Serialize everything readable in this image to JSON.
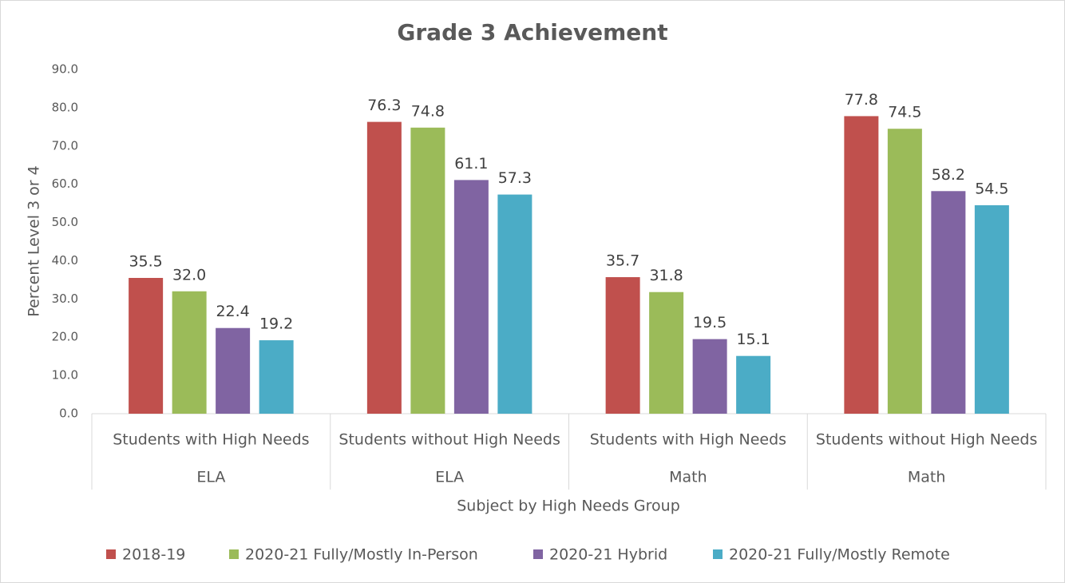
{
  "chart_data": {
    "type": "bar",
    "title": "Grade 3 Achievement",
    "y_label": "Percent Level 3 or 4",
    "x_label": "Subject by High Needs Group",
    "categories": [
      "Students with High Needs",
      "Students without High Needs",
      "Students with High Needs",
      "Students without High Needs"
    ],
    "category_groups": [
      "ELA",
      "ELA",
      "Math",
      "Math"
    ],
    "series": [
      {
        "name": "2018-19",
        "color": "#c0504d",
        "values": [
          35.5,
          76.3,
          35.7,
          77.8
        ],
        "value_labels": [
          "35.5",
          "76.3",
          "35.7",
          "77.8"
        ]
      },
      {
        "name": "2020-21 Fully/Mostly In-Person",
        "color": "#9bbb59",
        "values": [
          32,
          74.8,
          31.8,
          74.5
        ],
        "value_labels": [
          "32.0",
          "74.8",
          "31.8",
          "74.5"
        ]
      },
      {
        "name": "2020-21 Hybrid",
        "color": "#8064a2",
        "values": [
          22.4,
          61.1,
          19.5,
          58.2
        ],
        "value_labels": [
          "22.4",
          "61.1",
          "19.5",
          "58.2"
        ]
      },
      {
        "name": "2020-21 Fully/Mostly Remote",
        "color": "#4bacc6",
        "values": [
          19.2,
          57.3,
          15.1,
          54.5
        ],
        "value_labels": [
          "19.2",
          "57.3",
          "15.1",
          "54.5"
        ]
      }
    ],
    "ylim": [
      0,
      90
    ],
    "yticks": [
      {
        "value": 0,
        "label": "0.0"
      },
      {
        "value": 10,
        "label": "10.0"
      },
      {
        "value": 20,
        "label": "20.0"
      },
      {
        "value": 30,
        "label": "30.0"
      },
      {
        "value": 40,
        "label": "40.0"
      },
      {
        "value": 50,
        "label": "50.0"
      },
      {
        "value": 60,
        "label": "60.0"
      },
      {
        "value": 70,
        "label": "70.0"
      },
      {
        "value": 80,
        "label": "80.0"
      },
      {
        "value": 90,
        "label": "90.0"
      }
    ],
    "grid": false,
    "legend": "bottom"
  }
}
